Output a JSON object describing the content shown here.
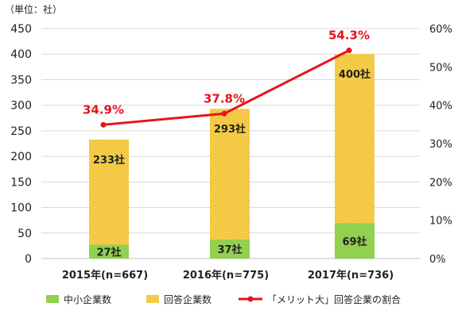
{
  "chart_data": {
    "type": "bar",
    "unit_label": "（単位：社）",
    "categories": [
      "2015年(n=667)",
      "2016年(n=775)",
      "2017年(n=736)"
    ],
    "ylim": [
      0,
      450
    ],
    "yticks": [
      0,
      50,
      100,
      150,
      200,
      250,
      300,
      350,
      400,
      450
    ],
    "y2lim": [
      0,
      60
    ],
    "y2ticks": [
      "0%",
      "10%",
      "20%",
      "30%",
      "40%",
      "50%",
      "60%"
    ],
    "series": [
      {
        "name": "中小企業数",
        "values": [
          27,
          37,
          69
        ],
        "labels": [
          "27社",
          "37社",
          "69社"
        ],
        "color": "#92D050"
      },
      {
        "name": "回答企業数",
        "values": [
          233,
          293,
          400
        ],
        "labels": [
          "233社",
          "293社",
          "400社"
        ],
        "color": "#F2C230"
      },
      {
        "name": "「メリット大」回答企業の割合",
        "type": "line",
        "axis": "right",
        "values": [
          34.9,
          37.8,
          54.3
        ],
        "labels": [
          "34.9%",
          "37.8%",
          "54.3%"
        ],
        "color": "#E8121C"
      }
    ],
    "grid": true,
    "legend": "bottom"
  }
}
